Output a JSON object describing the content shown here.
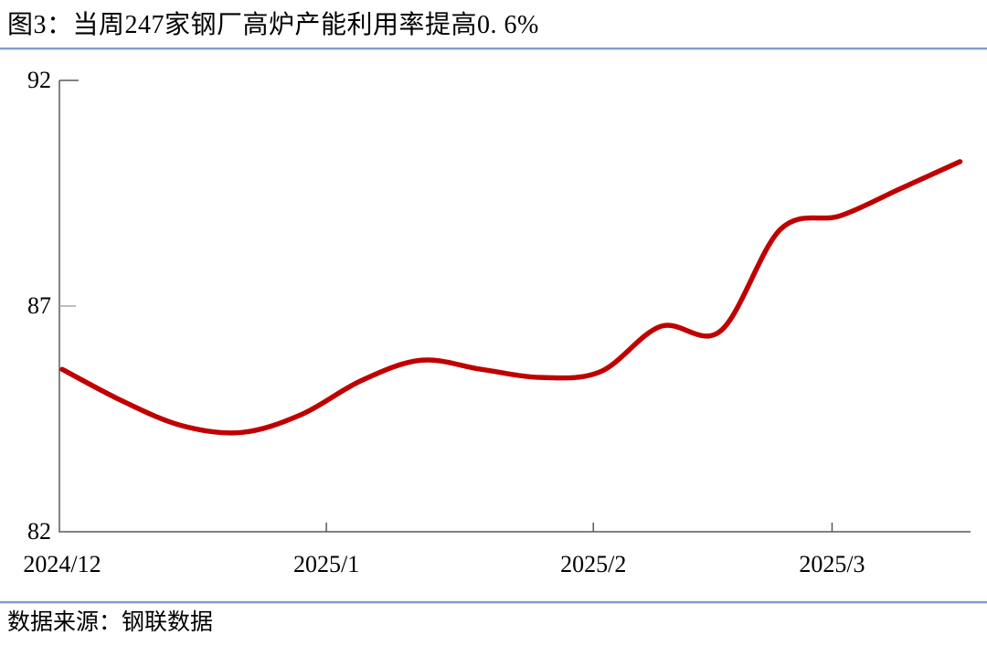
{
  "figure": {
    "title": "图3：当周247家钢厂高炉产能利用率提高0. 6%"
  },
  "source": {
    "text": "数据来源：钢联数据"
  },
  "colors": {
    "line": "#C00000",
    "axis": "#595959",
    "minor_tick": "#A6A6A6",
    "divider_blue": "#7E9CC9",
    "text": "#000000",
    "background": "#FFFFFF"
  },
  "chart_data": {
    "type": "line",
    "title": "图3：当周247家钢厂高炉产能利用率提高0.6%",
    "xlabel": "",
    "ylabel": "",
    "ylim": [
      82,
      92
    ],
    "yticks": [
      92,
      87,
      82
    ],
    "grid": false,
    "legend_position": "none",
    "x_ticks": [
      {
        "label": "2024/12",
        "pos": 0.003,
        "tick": false
      },
      {
        "label": "2025/1",
        "pos": 0.293,
        "tick": true
      },
      {
        "label": "2025/2",
        "pos": 0.586,
        "tick": true
      },
      {
        "label": "2025/3",
        "pos": 0.848,
        "tick": true
      }
    ],
    "series": [
      {
        "color": "#C00000",
        "points": [
          {
            "x": 0.003,
            "v": 85.6
          },
          {
            "x": 0.0687,
            "v": 84.9
          },
          {
            "x": 0.1344,
            "v": 84.35
          },
          {
            "x": 0.2001,
            "v": 84.2
          },
          {
            "x": 0.2658,
            "v": 84.6
          },
          {
            "x": 0.3315,
            "v": 85.35
          },
          {
            "x": 0.3972,
            "v": 85.8
          },
          {
            "x": 0.4629,
            "v": 85.6
          },
          {
            "x": 0.5286,
            "v": 85.42
          },
          {
            "x": 0.5943,
            "v": 85.55
          },
          {
            "x": 0.66,
            "v": 86.55
          },
          {
            "x": 0.7257,
            "v": 86.45
          },
          {
            "x": 0.7914,
            "v": 88.7
          },
          {
            "x": 0.8571,
            "v": 89.0
          },
          {
            "x": 0.9228,
            "v": 89.6
          },
          {
            "x": 0.9885,
            "v": 90.2
          }
        ]
      }
    ]
  }
}
